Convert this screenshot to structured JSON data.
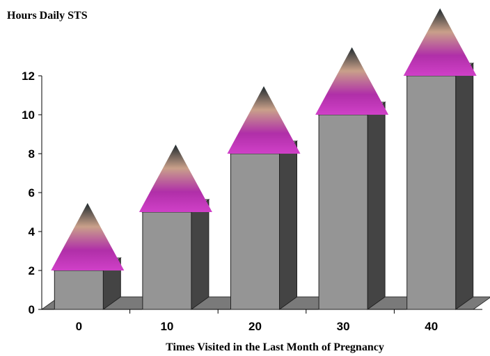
{
  "chart_data": {
    "type": "bar3d",
    "title": "Hours Daily STS",
    "x_label": "Times Visited in the Last Month of Pregnancy",
    "categories": [
      "0",
      "10",
      "20",
      "30",
      "40"
    ],
    "values": [
      2,
      5,
      8,
      10,
      12
    ],
    "color": "#959595",
    "ylim": [
      0,
      12
    ],
    "yticks": [
      0,
      2,
      4,
      6,
      8,
      10,
      12
    ]
  }
}
